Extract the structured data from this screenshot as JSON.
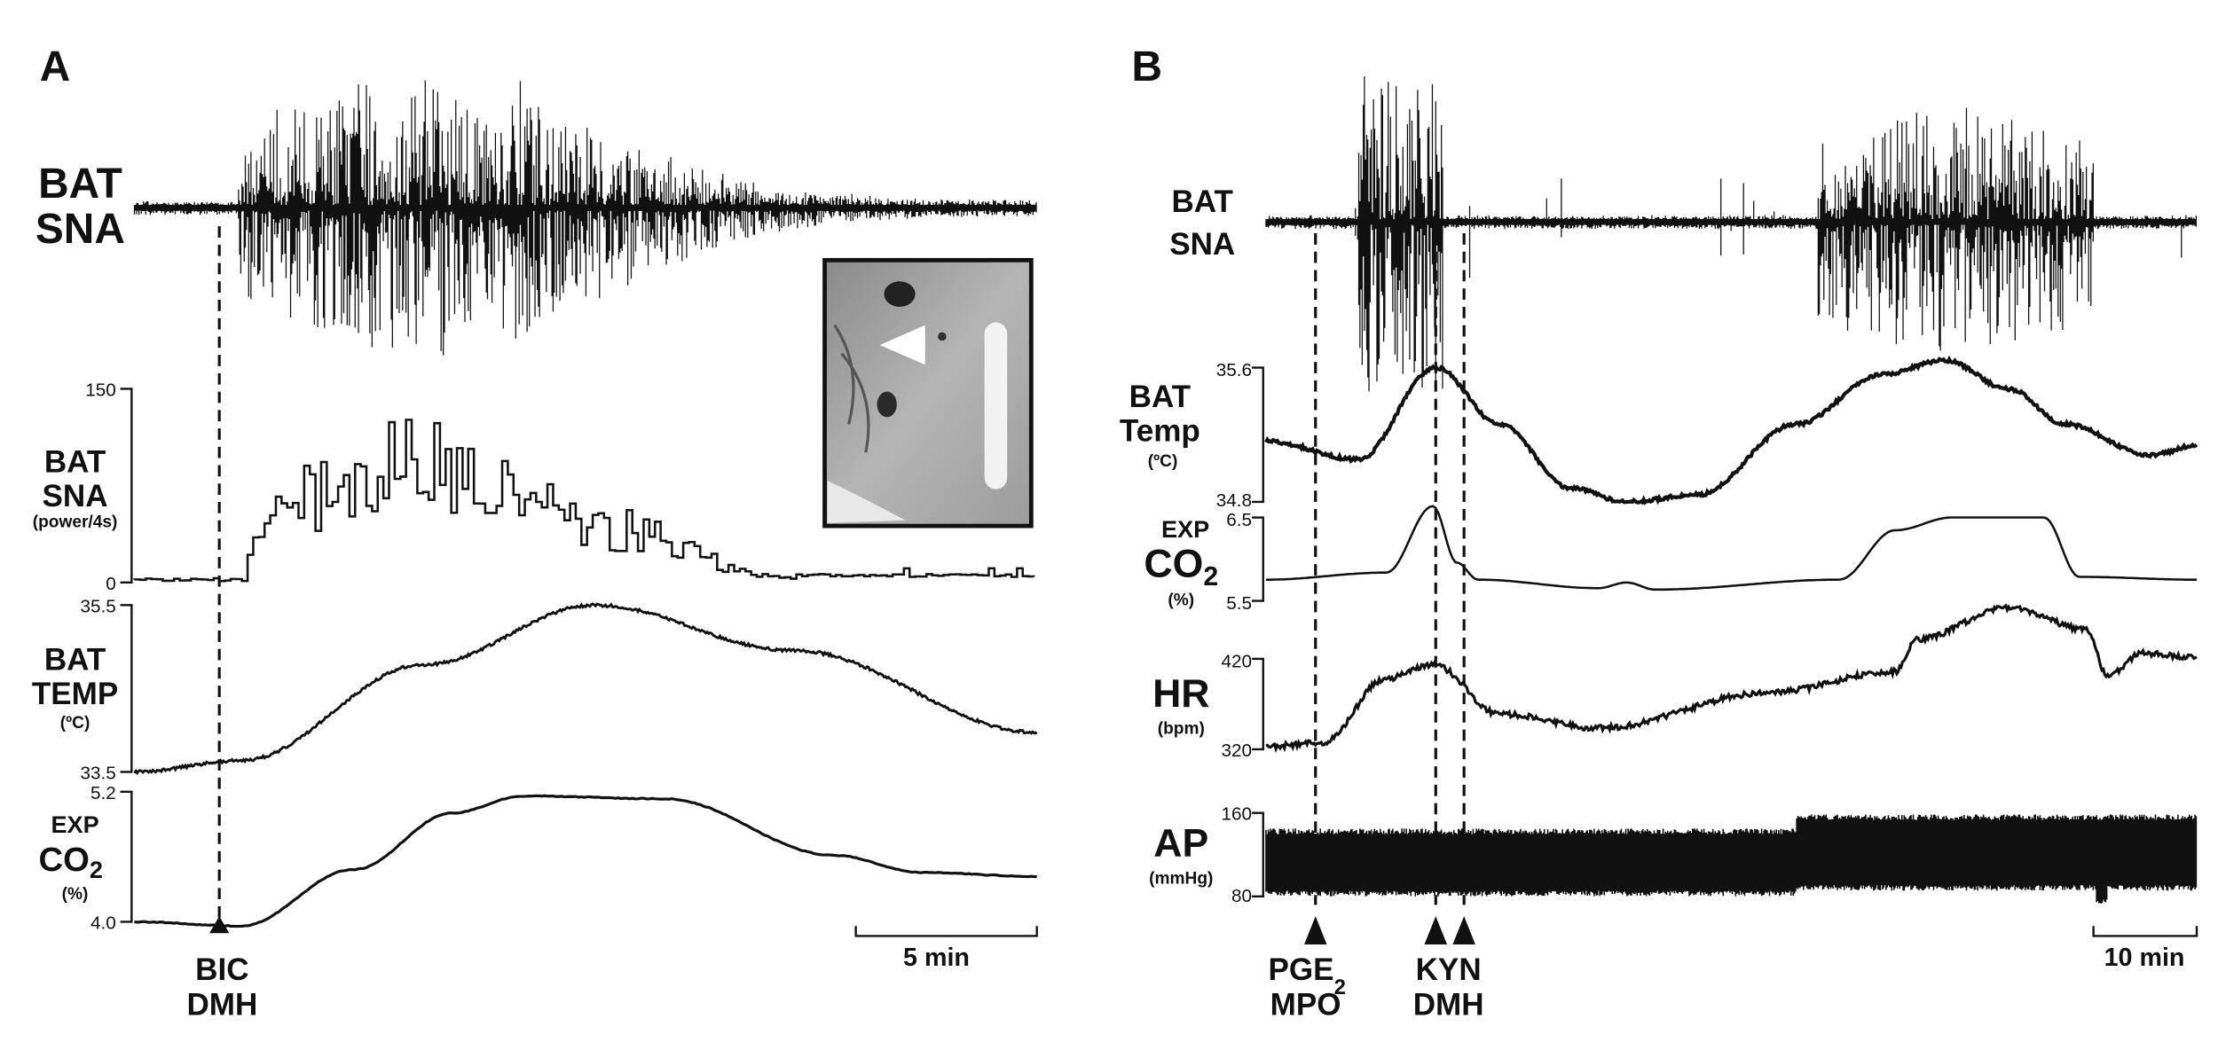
{
  "panels": [
    {
      "label": "A",
      "raw_trace": {
        "label": [
          "BAT",
          "SNA"
        ]
      },
      "traces": [
        {
          "label": [
            "BAT",
            "SNA"
          ],
          "unit": "(power/4s)",
          "ticks": [
            "150",
            "0"
          ]
        },
        {
          "label": [
            "BAT",
            "TEMP"
          ],
          "unit": "(ºC)",
          "ticks": [
            "35.5",
            "33.5"
          ]
        },
        {
          "prefix": "EXP",
          "label": "CO",
          "subscript": "2",
          "unit": "(%)",
          "ticks": [
            "5.2",
            "4.0"
          ]
        }
      ],
      "scale_bar": "5 min",
      "stimuli": [
        {
          "lines": [
            "BIC",
            "DMH"
          ]
        }
      ]
    },
    {
      "label": "B",
      "raw_trace": {
        "label": [
          "BAT",
          "SNA"
        ]
      },
      "traces": [
        {
          "label": [
            "BAT",
            "Temp"
          ],
          "unit": "(ºC)",
          "ticks": [
            "35.6",
            "34.8"
          ]
        },
        {
          "prefix": "EXP",
          "label": "CO",
          "subscript": "2",
          "unit": "(%)",
          "ticks": [
            "6.5",
            "5.5"
          ]
        },
        {
          "label": [
            "HR"
          ],
          "unit": "(bpm)",
          "ticks": [
            "420",
            "320"
          ]
        },
        {
          "label": [
            "AP"
          ],
          "unit": "(mmHg)",
          "ticks": [
            "160",
            "80"
          ]
        }
      ],
      "scale_bar": "10 min",
      "stimuli": [
        {
          "lines": [
            "PGE",
            "MPO"
          ],
          "subscript": "2"
        },
        {
          "lines": [
            "KYN",
            "DMH"
          ]
        }
      ]
    }
  ]
}
